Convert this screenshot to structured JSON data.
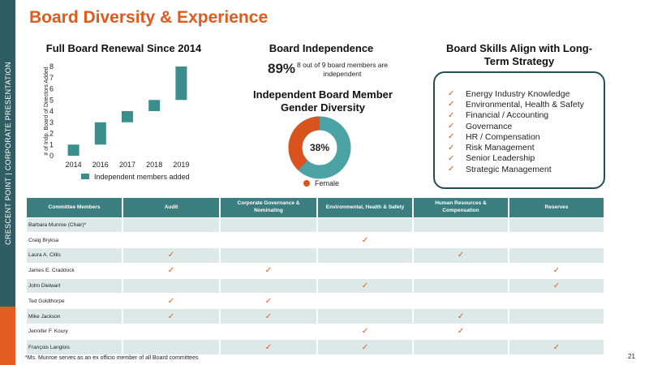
{
  "sidebar": {
    "text": "CRESCENT POINT  |  CORPORATE PRESENTATION"
  },
  "title": "Board Diversity & Experience",
  "renewal": {
    "heading": "Full Board Renewal Since 2014",
    "legend": "Independent members added",
    "ylabel": "# of Indp. Board of Directors Added"
  },
  "chart_data": {
    "type": "bar",
    "categories": [
      "2014",
      "2016",
      "2017",
      "2018",
      "2019"
    ],
    "series": [
      {
        "name": "Independent members added",
        "values": [
          1,
          2,
          1,
          1,
          3
        ]
      }
    ],
    "bases": [
      0,
      1,
      3,
      4,
      5
    ],
    "tops": [
      1,
      3,
      4,
      5,
      8
    ],
    "ylim": [
      0,
      8
    ],
    "yticks": [
      0,
      1,
      2,
      3,
      4,
      5,
      6,
      7,
      8
    ],
    "xlabel": "",
    "ylabel": "# of Indp. Board of Directors Added",
    "color": "#3a8f8c",
    "legend_position": "bottom"
  },
  "independence": {
    "heading": "Board Independence",
    "pct": "89%",
    "desc": "8 out of 9 board members are independent"
  },
  "gender": {
    "heading": "Independent Board Member Gender Diversity",
    "pct_label": "38%",
    "female_fraction": 0.38,
    "legend": "Female",
    "female_color": "#d9531e",
    "other_color": "#4ba3a5"
  },
  "skills": {
    "heading": "Board Skills Align with Long-Term Strategy",
    "items": [
      "Energy Industry Knowledge",
      "Environmental, Health & Safety",
      "Financial / Accounting",
      "Governance",
      "HR / Compensation",
      "Risk Management",
      "Senior Leadership",
      "Strategic Management"
    ],
    "check": "✓"
  },
  "committees": {
    "headers": [
      "Committee Members",
      "Audit",
      "Corporate Governance & Nominating",
      "Environmental, Health & Safety",
      "Human Resources & Compensation",
      "Reserves"
    ],
    "rows": [
      {
        "name": "Barbara Munroe (Chair)*",
        "marks": [
          "",
          "",
          "",
          "",
          ""
        ]
      },
      {
        "name": "Craig Bryksa",
        "marks": [
          "",
          "",
          "✓",
          "",
          ""
        ]
      },
      {
        "name": "Laura A. Cillis",
        "marks": [
          "✓",
          "",
          "",
          "✓",
          ""
        ]
      },
      {
        "name": "James E. Craddock",
        "marks": [
          "✓",
          "✓",
          "",
          "",
          "✓"
        ]
      },
      {
        "name": "John Dielwart",
        "marks": [
          "",
          "",
          "✓",
          "",
          "✓"
        ]
      },
      {
        "name": "Ted Goldthorpe",
        "marks": [
          "✓",
          "✓",
          "",
          "",
          ""
        ]
      },
      {
        "name": "Mike Jackson",
        "marks": [
          "✓",
          "✓",
          "",
          "✓",
          ""
        ]
      },
      {
        "name": "Jennifer F. Koury",
        "marks": [
          "",
          "",
          "✓",
          "✓",
          ""
        ]
      },
      {
        "name": "François Langlois",
        "marks": [
          "",
          "✓",
          "✓",
          "",
          "✓"
        ]
      }
    ]
  },
  "footnote": "*Ms. Munroe serves as an ex officio member of all Board committees",
  "page_number": "21",
  "colors": {
    "accent": "#e05a1e",
    "teal": "#3a7e7f",
    "sidebar": "#2f5d62"
  }
}
